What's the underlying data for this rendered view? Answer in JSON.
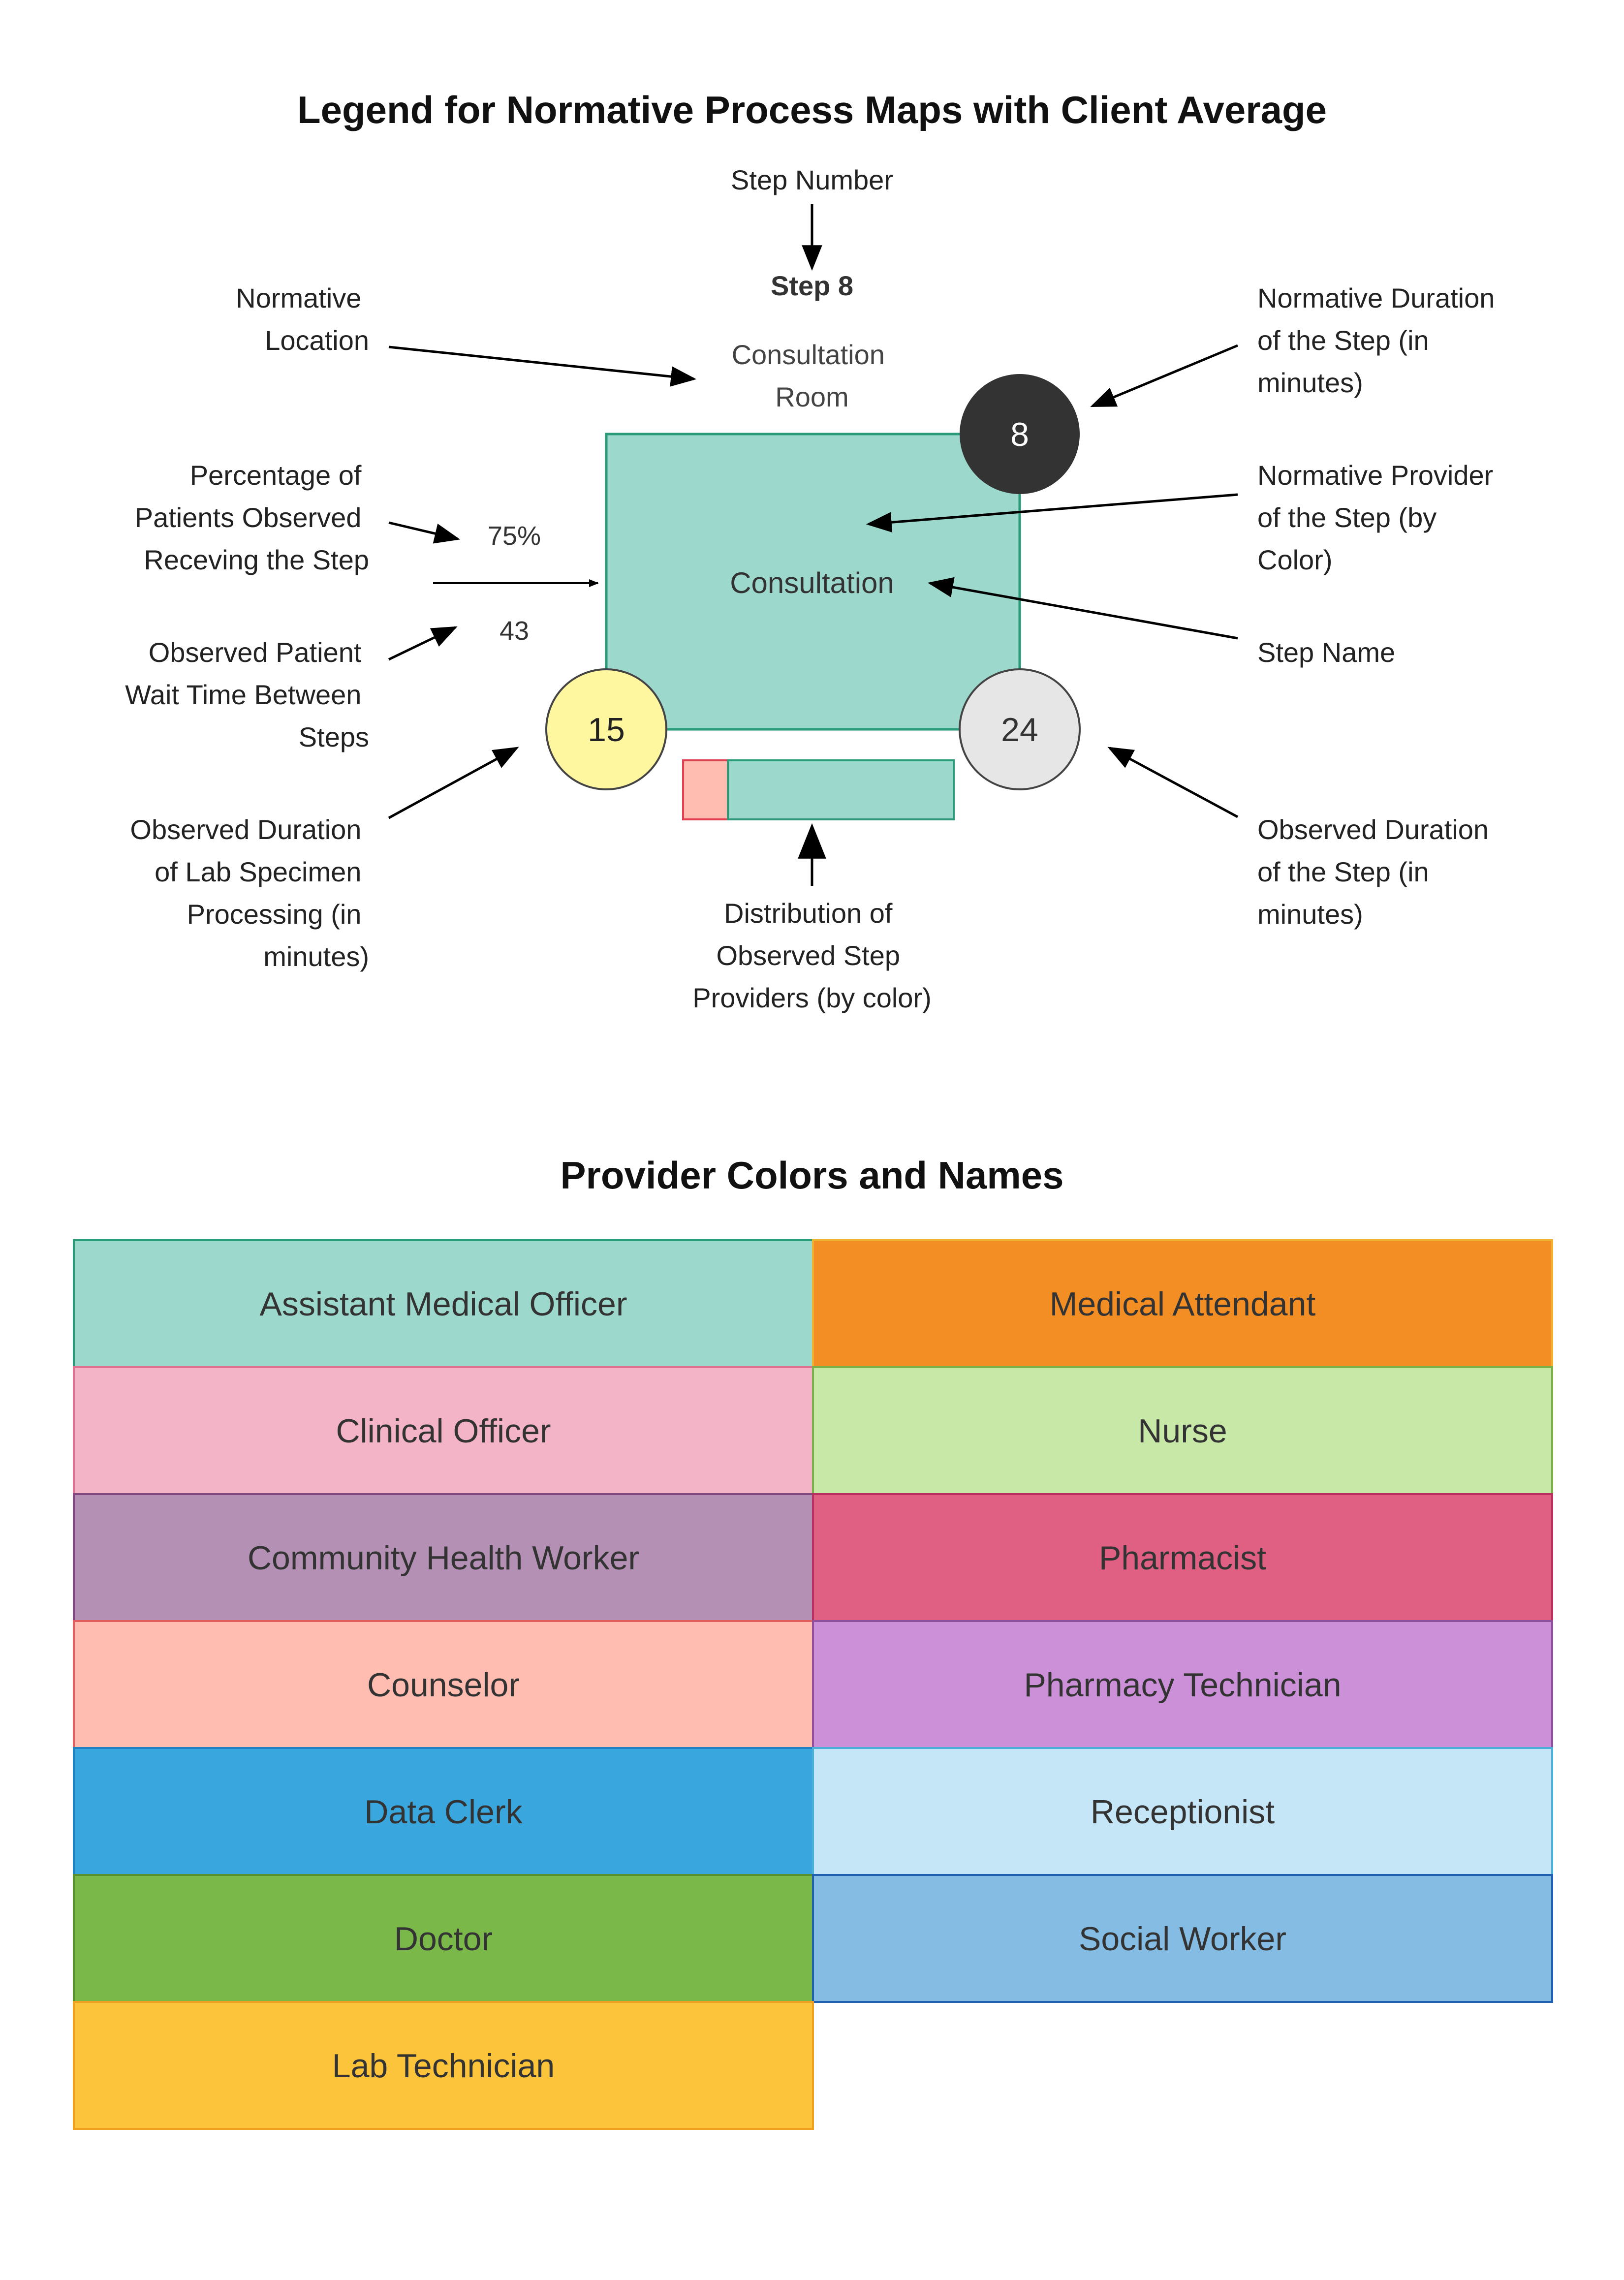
{
  "title": "Legend for Normative Process Maps with Client Average",
  "step": {
    "number_label": "Step 8",
    "location": [
      "Consultation",
      "Room"
    ],
    "name": "Consultation",
    "normative_duration": "8",
    "percentage": "75%",
    "wait_time": "43",
    "lab_duration": "15",
    "observed_duration": "24",
    "box_color": "#9dd8cc",
    "box_stroke": "#2a9a78",
    "distribution": [
      {
        "color": "#ffbcb0",
        "stroke": "#e04050",
        "share": 0.166
      },
      {
        "color": "#9dd8cc",
        "stroke": "#2a9a78",
        "share": 0.834
      }
    ]
  },
  "annotations": {
    "step_number": [
      "Step Number"
    ],
    "normative_location": [
      "Normative",
      "Location"
    ],
    "normative_duration": [
      "Normative Duration",
      "of the Step (in",
      "minutes)"
    ],
    "percentage": [
      "Percentage of",
      "Patients Observed",
      "Receving the Step"
    ],
    "normative_provider": [
      "Normative Provider",
      "of the Step (by",
      "Color)"
    ],
    "wait_time": [
      "Observed Patient",
      "Wait Time Between",
      "Steps"
    ],
    "step_name": [
      "Step Name"
    ],
    "lab_duration": [
      "Observed Duration",
      "of Lab Specimen",
      "Processing (in",
      "minutes)"
    ],
    "distribution": [
      "Distribution of",
      "Observed Step",
      "Providers (by color)"
    ],
    "observed_duration": [
      "Observed Duration",
      "of the Step (in",
      "minutes)"
    ]
  },
  "providers_title": "Provider Colors and Names",
  "providers": [
    {
      "name": "Assistant Medical Officer",
      "fill": "#9dd8cc",
      "stroke": "#2a9a78"
    },
    {
      "name": "Medical Attendant",
      "fill": "#f28e24",
      "stroke": "#f0b030"
    },
    {
      "name": "Clinical Officer",
      "fill": "#f4b4c8",
      "stroke": "#e07090"
    },
    {
      "name": "Nurse",
      "fill": "#c8e8a8",
      "stroke": "#7ab04a"
    },
    {
      "name": "Community Health Worker",
      "fill": "#b490b4",
      "stroke": "#804880"
    },
    {
      "name": "Pharmacist",
      "fill": "#e06084",
      "stroke": "#b83060"
    },
    {
      "name": "Counselor",
      "fill": "#ffbcb0",
      "stroke": "#e06060"
    },
    {
      "name": "Pharmacy Technician",
      "fill": "#cc90d8",
      "stroke": "#9050a0"
    },
    {
      "name": "Data Clerk",
      "fill": "#3aa6de",
      "stroke": "#2080c0"
    },
    {
      "name": "Receptionist",
      "fill": "#c4e6f6",
      "stroke": "#4ab0d8"
    },
    {
      "name": "Doctor",
      "fill": "#7ab84a",
      "stroke": "#5a9030"
    },
    {
      "name": "Social Worker",
      "fill": "#84bce4",
      "stroke": "#2060b0"
    },
    {
      "name": "Lab Technician",
      "fill": "#fcc43a",
      "stroke": "#f0a020"
    }
  ],
  "colors": {
    "normative_duration_circle": "#333333",
    "lab_duration_circle": "#fff6a0",
    "observed_duration_circle": "#e6e6e6"
  }
}
